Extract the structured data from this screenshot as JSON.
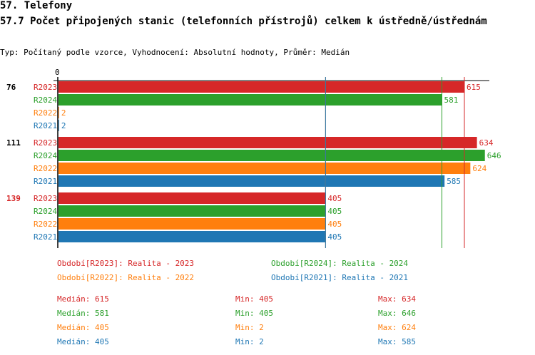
{
  "heading1": "57. Telefony",
  "heading2": "57.7 Počet připojených stanic (telefonních přístrojů) celkem k ústředně/ústřednám",
  "subtitle": "Typ: Počítaný podle vzorce, Vyhodnocení: Absolutní hodnoty, Průměr: Medián",
  "chart_data": {
    "type": "bar",
    "orientation": "horizontal",
    "axis_zero_label": "0",
    "groups": [
      {
        "label": "76",
        "highlight": false,
        "bars": [
          {
            "series": "R2023",
            "value": 615
          },
          {
            "series": "R2024",
            "value": 581
          },
          {
            "series": "R2022",
            "value": 2
          },
          {
            "series": "R2021",
            "value": 2
          }
        ]
      },
      {
        "label": "111",
        "highlight": false,
        "bars": [
          {
            "series": "R2023",
            "value": 634
          },
          {
            "series": "R2024",
            "value": 646
          },
          {
            "series": "R2022",
            "value": 624
          },
          {
            "series": "R2021",
            "value": 585
          }
        ]
      },
      {
        "label": "139",
        "highlight": true,
        "bars": [
          {
            "series": "R2023",
            "value": 405
          },
          {
            "series": "R2024",
            "value": 405
          },
          {
            "series": "R2022",
            "value": 405
          },
          {
            "series": "R2021",
            "value": 405
          }
        ]
      }
    ],
    "series_colors": {
      "R2023": "#d62728",
      "R2024": "#2ca02c",
      "R2022": "#ff7f0e",
      "R2021": "#1f77b4"
    },
    "median_lines": [
      {
        "series": "R2023",
        "value": 615
      },
      {
        "series": "R2024",
        "value": 581
      },
      {
        "series": "R2022",
        "value": 405
      },
      {
        "series": "R2021",
        "value": 405
      }
    ],
    "legend": [
      {
        "series": "R2023",
        "text": "Období[R2023]: Realita - 2023"
      },
      {
        "series": "R2024",
        "text": "Období[R2024]: Realita - 2024"
      },
      {
        "series": "R2022",
        "text": "Období[R2022]: Realita - 2022"
      },
      {
        "series": "R2021",
        "text": "Období[R2021]: Realita - 2021"
      }
    ],
    "stats": [
      {
        "series": "R2023",
        "median": "Medián: 615",
        "min": "Min: 405",
        "max": "Max: 634"
      },
      {
        "series": "R2024",
        "median": "Medián: 581",
        "min": "Min: 405",
        "max": "Max: 646"
      },
      {
        "series": "R2022",
        "median": "Medián: 405",
        "min": "Min: 2",
        "max": "Max: 624"
      },
      {
        "series": "R2021",
        "median": "Medián: 405",
        "min": "Min: 2",
        "max": "Max: 585"
      }
    ],
    "highlight_color": "#d62728"
  }
}
